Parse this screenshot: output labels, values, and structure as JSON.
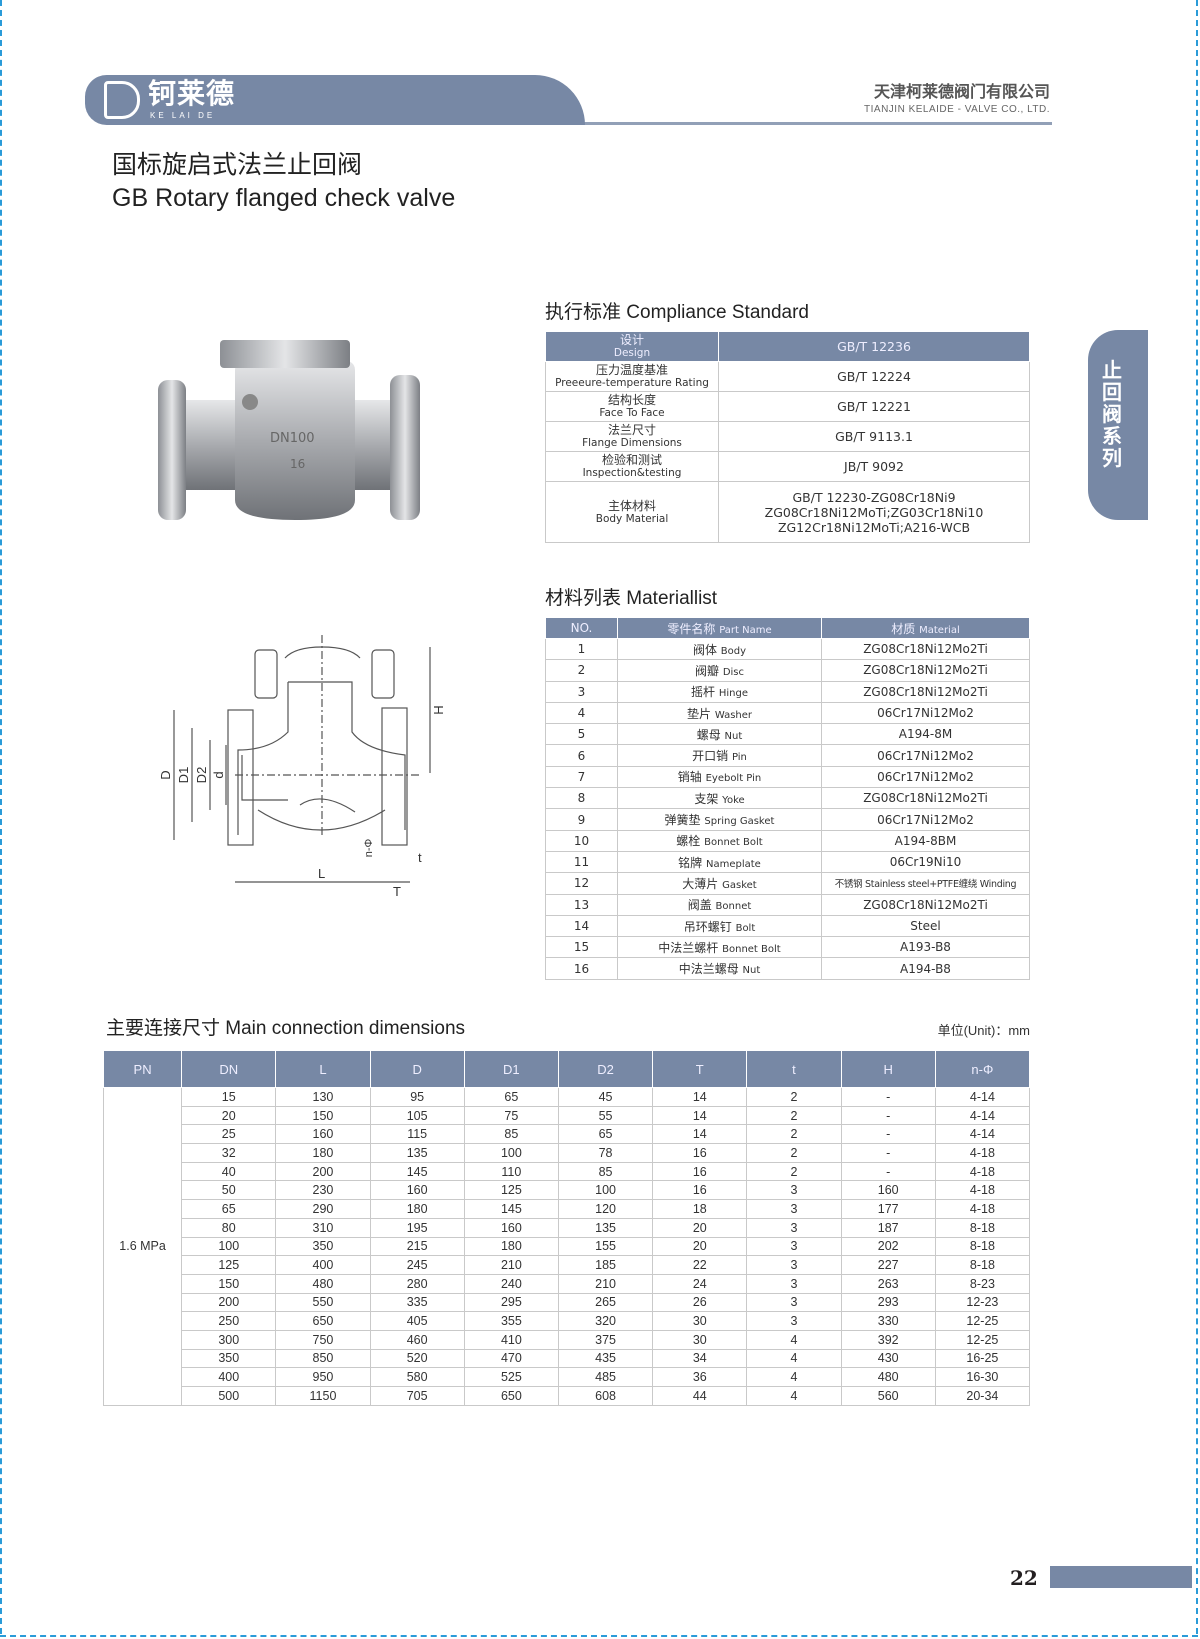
{
  "header": {
    "logo_cn": "钶莱德",
    "logo_en": "KE LAI DE",
    "company_cn": "天津柯莱德阀门有限公司",
    "company_en": "TIANJIN  KELAIDE - VALVE  CO., LTD.",
    "brand_color": "#7788a5"
  },
  "title": {
    "cn": "国标旋启式法兰止回阀",
    "en": "GB Rotary flanged check valve"
  },
  "side_tab": "止回阀系列",
  "photo": {
    "marking_dn": "DN100",
    "marking_pn": "16"
  },
  "drawing": {
    "labels": {
      "D": "D",
      "D1": "D1",
      "D2": "D2",
      "d": "d",
      "H": "H",
      "L": "L",
      "T": "T",
      "t": "t",
      "n": "n-Φ"
    }
  },
  "compliance": {
    "heading": "执行标准 Compliance Standard",
    "rows": [
      {
        "cn": "设计",
        "en": "Design",
        "value": [
          "GB/T 12236"
        ]
      },
      {
        "cn": "压力温度基准",
        "en": "Preeeure-temperature Rating",
        "value": [
          "GB/T 12224"
        ]
      },
      {
        "cn": "结构长度",
        "en": "Face To Face",
        "value": [
          "GB/T 12221"
        ]
      },
      {
        "cn": "法兰尺寸",
        "en": "Flange Dimensions",
        "value": [
          "GB/T 9113.1"
        ]
      },
      {
        "cn": "检验和测试",
        "en": "Inspection&testing",
        "value": [
          "JB/T 9092"
        ]
      },
      {
        "cn": "主体材料",
        "en": "Body Material",
        "value": [
          "GB/T 12230-ZG08Cr18Ni9",
          "ZG08Cr18Ni12MoTi;ZG03Cr18Ni10",
          "ZG12Cr18Ni12MoTi;A216-WCB"
        ]
      }
    ]
  },
  "materials": {
    "heading": "材料列表 Materiallist",
    "columns": {
      "no": "NO.",
      "part_cn": "零件名称",
      "part_en": "Part Name",
      "mat_cn": "材质",
      "mat_en": "Material"
    },
    "rows": [
      {
        "no": "1",
        "cn": "阀体",
        "en": "Body",
        "mat": "ZG08Cr18Ni12Mo2Ti"
      },
      {
        "no": "2",
        "cn": "阀瓣",
        "en": "Disc",
        "mat": "ZG08Cr18Ni12Mo2Ti"
      },
      {
        "no": "3",
        "cn": "摇杆",
        "en": "Hinge",
        "mat": "ZG08Cr18Ni12Mo2Ti"
      },
      {
        "no": "4",
        "cn": "垫片",
        "en": "Washer",
        "mat": "06Cr17Ni12Mo2"
      },
      {
        "no": "5",
        "cn": "螺母",
        "en": "Nut",
        "mat": "A194-8M"
      },
      {
        "no": "6",
        "cn": "开口销",
        "en": "Pin",
        "mat": "06Cr17Ni12Mo2"
      },
      {
        "no": "7",
        "cn": "销轴",
        "en": "Eyebolt Pin",
        "mat": "06Cr17Ni12Mo2"
      },
      {
        "no": "8",
        "cn": "支架",
        "en": "Yoke",
        "mat": "ZG08Cr18Ni12Mo2Ti"
      },
      {
        "no": "9",
        "cn": "弹簧垫",
        "en": "Spring Gasket",
        "mat": "06Cr17Ni12Mo2"
      },
      {
        "no": "10",
        "cn": "螺栓",
        "en": "Bonnet Bolt",
        "mat": "A194-8BM"
      },
      {
        "no": "11",
        "cn": "铭牌",
        "en": "Nameplate",
        "mat": "06Cr19Ni10"
      },
      {
        "no": "12",
        "cn": "大薄片",
        "en": "Gasket",
        "mat": "不锈钢 Stainless steel+PTFE缠绕 Winding"
      },
      {
        "no": "13",
        "cn": "阀盖",
        "en": "Bonnet",
        "mat": "ZG08Cr18Ni12Mo2Ti"
      },
      {
        "no": "14",
        "cn": "吊环螺钉",
        "en": "Bolt",
        "mat": "Steel"
      },
      {
        "no": "15",
        "cn": "中法兰螺杆",
        "en": "Bonnet Bolt",
        "mat": "A193-B8"
      },
      {
        "no": "16",
        "cn": "中法兰螺母",
        "en": "Nut",
        "mat": "A194-B8"
      }
    ]
  },
  "dimensions": {
    "heading": "主要连接尺寸 Main connection dimensions",
    "unit": "单位(Unit)：mm",
    "pn": "1.6 MPa",
    "columns": [
      "PN",
      "DN",
      "L",
      "D",
      "D1",
      "D2",
      "T",
      "t",
      "H",
      "n-Φ"
    ],
    "rows": [
      [
        "15",
        "130",
        "95",
        "65",
        "45",
        "14",
        "2",
        "-",
        "4-14"
      ],
      [
        "20",
        "150",
        "105",
        "75",
        "55",
        "14",
        "2",
        "-",
        "4-14"
      ],
      [
        "25",
        "160",
        "115",
        "85",
        "65",
        "14",
        "2",
        "-",
        "4-14"
      ],
      [
        "32",
        "180",
        "135",
        "100",
        "78",
        "16",
        "2",
        "-",
        "4-18"
      ],
      [
        "40",
        "200",
        "145",
        "110",
        "85",
        "16",
        "2",
        "-",
        "4-18"
      ],
      [
        "50",
        "230",
        "160",
        "125",
        "100",
        "16",
        "3",
        "160",
        "4-18"
      ],
      [
        "65",
        "290",
        "180",
        "145",
        "120",
        "18",
        "3",
        "177",
        "4-18"
      ],
      [
        "80",
        "310",
        "195",
        "160",
        "135",
        "20",
        "3",
        "187",
        "8-18"
      ],
      [
        "100",
        "350",
        "215",
        "180",
        "155",
        "20",
        "3",
        "202",
        "8-18"
      ],
      [
        "125",
        "400",
        "245",
        "210",
        "185",
        "22",
        "3",
        "227",
        "8-18"
      ],
      [
        "150",
        "480",
        "280",
        "240",
        "210",
        "24",
        "3",
        "263",
        "8-23"
      ],
      [
        "200",
        "550",
        "335",
        "295",
        "265",
        "26",
        "3",
        "293",
        "12-23"
      ],
      [
        "250",
        "650",
        "405",
        "355",
        "320",
        "30",
        "3",
        "330",
        "12-25"
      ],
      [
        "300",
        "750",
        "460",
        "410",
        "375",
        "30",
        "4",
        "392",
        "12-25"
      ],
      [
        "350",
        "850",
        "520",
        "470",
        "435",
        "34",
        "4",
        "430",
        "16-25"
      ],
      [
        "400",
        "950",
        "580",
        "525",
        "485",
        "36",
        "4",
        "480",
        "16-30"
      ],
      [
        "500",
        "1150",
        "705",
        "650",
        "608",
        "44",
        "4",
        "560",
        "20-34"
      ]
    ]
  },
  "page_number": "22"
}
